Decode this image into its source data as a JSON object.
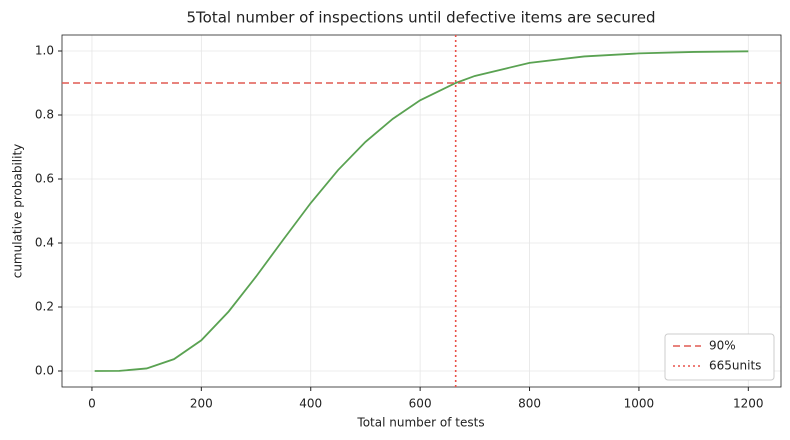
{
  "chart_data": {
    "type": "line",
    "title": "5Total number of inspections until defective items are secured",
    "xlabel": "Total number of tests",
    "ylabel": "cumulative probability",
    "x": [
      5,
      50,
      100,
      150,
      200,
      250,
      300,
      350,
      400,
      450,
      500,
      550,
      600,
      665,
      700,
      800,
      900,
      1000,
      1100,
      1200
    ],
    "series": [
      {
        "name": null,
        "color": "#5aa252",
        "values": [
          0,
          0.0003,
          0.008,
          0.037,
          0.096,
          0.186,
          0.295,
          0.411,
          0.525,
          0.628,
          0.716,
          0.788,
          0.846,
          0.9,
          0.922,
          0.963,
          0.983,
          0.9925,
          0.997,
          0.999
        ]
      }
    ],
    "hline": {
      "name": "90%",
      "value": 0.9,
      "color": "#e05a52",
      "style": "dashed"
    },
    "vline": {
      "name": "665units",
      "value": 665,
      "color": "#e8524a",
      "style": "dotted"
    },
    "xlim": [
      -54.75,
      1259.75
    ],
    "ylim": [
      -0.05,
      1.05
    ],
    "xticks": [
      0,
      200,
      400,
      600,
      800,
      1000,
      1200
    ],
    "yticks": [
      {
        "value": 0,
        "label": "0.0"
      },
      0.2,
      0.4,
      0.6,
      0.8,
      {
        "value": 1,
        "label": "1.0"
      }
    ],
    "grid": true,
    "legend": "lower right"
  }
}
